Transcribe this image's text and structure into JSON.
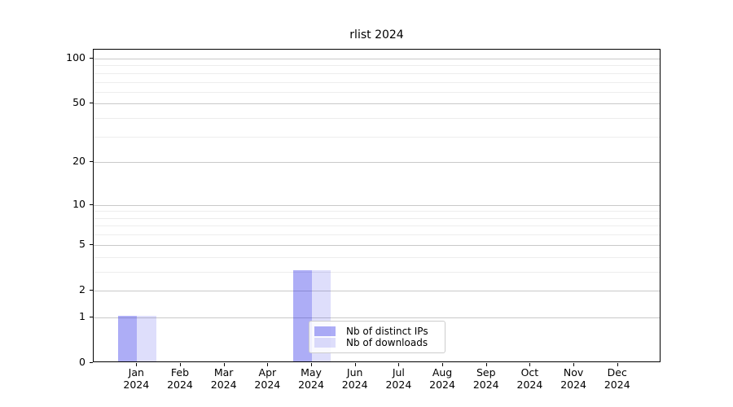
{
  "figure": {
    "background": "#ffffff"
  },
  "chart_data": {
    "type": "bar",
    "title": "rlist 2024",
    "categories": [
      "Jan",
      "Feb",
      "Mar",
      "Apr",
      "May",
      "Jun",
      "Jul",
      "Aug",
      "Sep",
      "Oct",
      "Nov",
      "Dec"
    ],
    "year": "2024",
    "series": [
      {
        "name": "Nb of distinct IPs",
        "color": "rgba(32,32,230,0.37)",
        "values": [
          1,
          0,
          0,
          0,
          3,
          0,
          0,
          0,
          0,
          0,
          0,
          0
        ]
      },
      {
        "name": "Nb of downloads",
        "color": "rgba(32,32,230,0.15)",
        "values": [
          1,
          0,
          0,
          0,
          3,
          0,
          0,
          0,
          0,
          0,
          0,
          0
        ]
      }
    ],
    "xlabel": "",
    "ylabel": "",
    "yscale": "log1p",
    "ylim": [
      0,
      115
    ],
    "y_ticks_major": [
      0,
      1,
      2,
      5,
      10,
      20,
      50,
      100
    ],
    "y_ticks_minor": [
      3,
      4,
      6,
      7,
      8,
      9,
      30,
      40,
      60,
      70,
      80,
      90
    ],
    "grid": "horizontal major+minor",
    "legend_position": "inside lower center",
    "colors": {
      "spine": "#000000",
      "grid_major": "#c9c9c9",
      "grid_minor": "#ededed",
      "text": "#000000",
      "legend_border": "#cccccc",
      "legend_bg": "rgba(255,255,255,0.8)"
    }
  }
}
